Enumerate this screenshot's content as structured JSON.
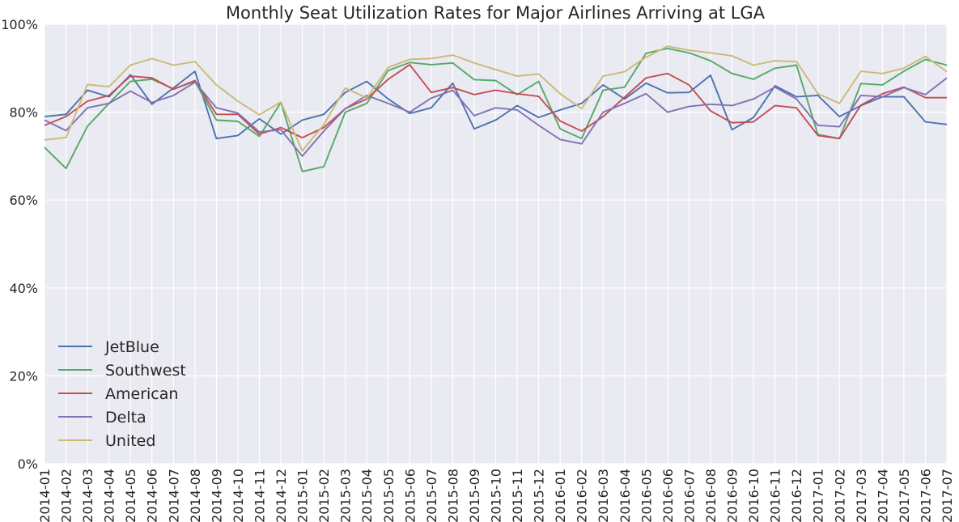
{
  "chart_data": {
    "type": "line",
    "title": "Monthly Seat Utilization Rates for Major Airlines Arriving at LGA",
    "xlabel": "",
    "ylabel": "",
    "ylim": [
      0,
      1
    ],
    "yticks": [
      0,
      0.2,
      0.4,
      0.6,
      0.8,
      1.0
    ],
    "ytick_labels": [
      "0%",
      "20%",
      "40%",
      "60%",
      "80%",
      "100%"
    ],
    "grid": true,
    "legend_position": "lower-left",
    "x": [
      "2014-01",
      "2014-02",
      "2014-03",
      "2014-04",
      "2014-05",
      "2014-06",
      "2014-07",
      "2014-08",
      "2014-09",
      "2014-10",
      "2014-11",
      "2014-12",
      "2015-01",
      "2015-02",
      "2015-03",
      "2015-04",
      "2015-05",
      "2015-06",
      "2015-07",
      "2015-08",
      "2015-09",
      "2015-10",
      "2015-11",
      "2015-12",
      "2016-01",
      "2016-02",
      "2016-03",
      "2016-04",
      "2016-05",
      "2016-06",
      "2016-07",
      "2016-08",
      "2016-09",
      "2016-10",
      "2016-11",
      "2016-12",
      "2017-01",
      "2017-02",
      "2017-03",
      "2017-04",
      "2017-05",
      "2017-06",
      "2017-07"
    ],
    "series": [
      {
        "name": "JetBlue",
        "color": "#4c72b0",
        "values": [
          0.79,
          0.795,
          0.85,
          0.835,
          0.885,
          0.818,
          0.855,
          0.893,
          0.74,
          0.747,
          0.785,
          0.75,
          0.782,
          0.795,
          0.845,
          0.87,
          0.83,
          0.797,
          0.81,
          0.866,
          0.762,
          0.782,
          0.815,
          0.788,
          0.805,
          0.82,
          0.862,
          0.83,
          0.866,
          0.844,
          0.845,
          0.884,
          0.76,
          0.788,
          0.86,
          0.835,
          0.838,
          0.79,
          0.815,
          0.835,
          0.835,
          0.778,
          0.772
        ]
      },
      {
        "name": "Southwest",
        "color": "#55a868",
        "values": [
          0.72,
          0.672,
          0.768,
          0.82,
          0.87,
          0.875,
          0.853,
          0.87,
          0.782,
          0.779,
          0.745,
          0.822,
          0.665,
          0.676,
          0.8,
          0.82,
          0.895,
          0.913,
          0.908,
          0.912,
          0.874,
          0.872,
          0.84,
          0.87,
          0.762,
          0.74,
          0.85,
          0.857,
          0.934,
          0.945,
          0.935,
          0.917,
          0.888,
          0.875,
          0.9,
          0.907,
          0.749,
          0.74,
          0.865,
          0.862,
          0.893,
          0.92,
          0.907
        ]
      },
      {
        "name": "American",
        "color": "#c44e52",
        "values": [
          0.77,
          0.79,
          0.825,
          0.838,
          0.882,
          0.878,
          0.852,
          0.872,
          0.795,
          0.795,
          0.75,
          0.765,
          0.742,
          0.765,
          0.808,
          0.83,
          0.875,
          0.908,
          0.845,
          0.856,
          0.84,
          0.85,
          0.842,
          0.836,
          0.78,
          0.757,
          0.79,
          0.834,
          0.878,
          0.888,
          0.862,
          0.803,
          0.776,
          0.778,
          0.815,
          0.81,
          0.747,
          0.74,
          0.816,
          0.842,
          0.857,
          0.833,
          0.833
        ]
      },
      {
        "name": "Delta",
        "color": "#8172b2",
        "values": [
          0.782,
          0.758,
          0.81,
          0.82,
          0.848,
          0.822,
          0.838,
          0.868,
          0.81,
          0.798,
          0.755,
          0.76,
          0.7,
          0.757,
          0.808,
          0.838,
          0.82,
          0.8,
          0.832,
          0.85,
          0.792,
          0.81,
          0.805,
          0.77,
          0.738,
          0.728,
          0.8,
          0.82,
          0.842,
          0.8,
          0.813,
          0.818,
          0.815,
          0.83,
          0.857,
          0.83,
          0.77,
          0.767,
          0.838,
          0.835,
          0.856,
          0.84,
          0.878
        ]
      },
      {
        "name": "United",
        "color": "#ccb974",
        "values": [
          0.737,
          0.742,
          0.863,
          0.858,
          0.907,
          0.922,
          0.907,
          0.915,
          0.862,
          0.825,
          0.794,
          0.823,
          0.712,
          0.772,
          0.855,
          0.832,
          0.902,
          0.92,
          0.922,
          0.93,
          0.912,
          0.897,
          0.882,
          0.887,
          0.842,
          0.808,
          0.882,
          0.892,
          0.925,
          0.95,
          0.941,
          0.935,
          0.928,
          0.907,
          0.917,
          0.915,
          0.842,
          0.82,
          0.893,
          0.888,
          0.9,
          0.927,
          0.892
        ]
      }
    ]
  }
}
